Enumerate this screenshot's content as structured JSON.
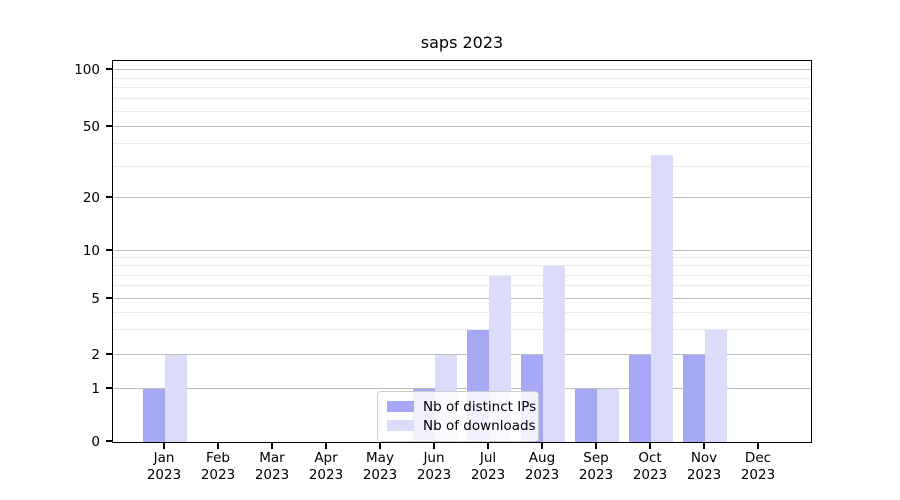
{
  "title": "saps 2023",
  "legend": {
    "items": [
      {
        "id": "distinct-ips",
        "label": "Nb of distinct IPs",
        "color": "#a6a8f5"
      },
      {
        "id": "downloads",
        "label": "Nb of downloads",
        "color": "#dadcf9"
      }
    ]
  },
  "colors": {
    "bar_distinct_ips": "#a6a8f5",
    "bar_downloads": "#dadcf9",
    "grid_major": "#bdbdbd",
    "grid_minor": "#ebebeb",
    "axis": "#000000",
    "background": "#ffffff"
  },
  "chart_data": {
    "type": "bar",
    "title": "saps 2023",
    "categories": [
      "Jan",
      "Feb",
      "Mar",
      "Apr",
      "May",
      "Jun",
      "Jul",
      "Aug",
      "Sep",
      "Oct",
      "Nov",
      "Dec"
    ],
    "category_year": "2023",
    "series": [
      {
        "id": "distinct-ips",
        "name": "Nb of distinct IPs",
        "color": "#a6a8f5",
        "values": [
          1,
          0,
          0,
          0,
          0,
          1,
          3,
          2,
          1,
          2,
          2,
          0
        ]
      },
      {
        "id": "downloads",
        "name": "Nb of downloads",
        "color": "#dadcf9",
        "values": [
          2,
          0,
          0,
          0,
          0,
          2,
          7,
          8,
          1,
          35,
          3,
          0
        ]
      }
    ],
    "y_axis": {
      "scale": "symlog",
      "ticks": [
        0,
        1,
        2,
        5,
        10,
        20,
        50,
        100
      ],
      "minor_ticks": [
        3,
        4,
        6,
        7,
        8,
        9,
        30,
        40,
        60,
        70,
        80,
        90
      ],
      "range": [
        0,
        110
      ]
    },
    "grid": true,
    "legend_position": "lower center",
    "bar_layout": {
      "group_width_frac": 0.8,
      "bars_per_group": 2
    }
  }
}
